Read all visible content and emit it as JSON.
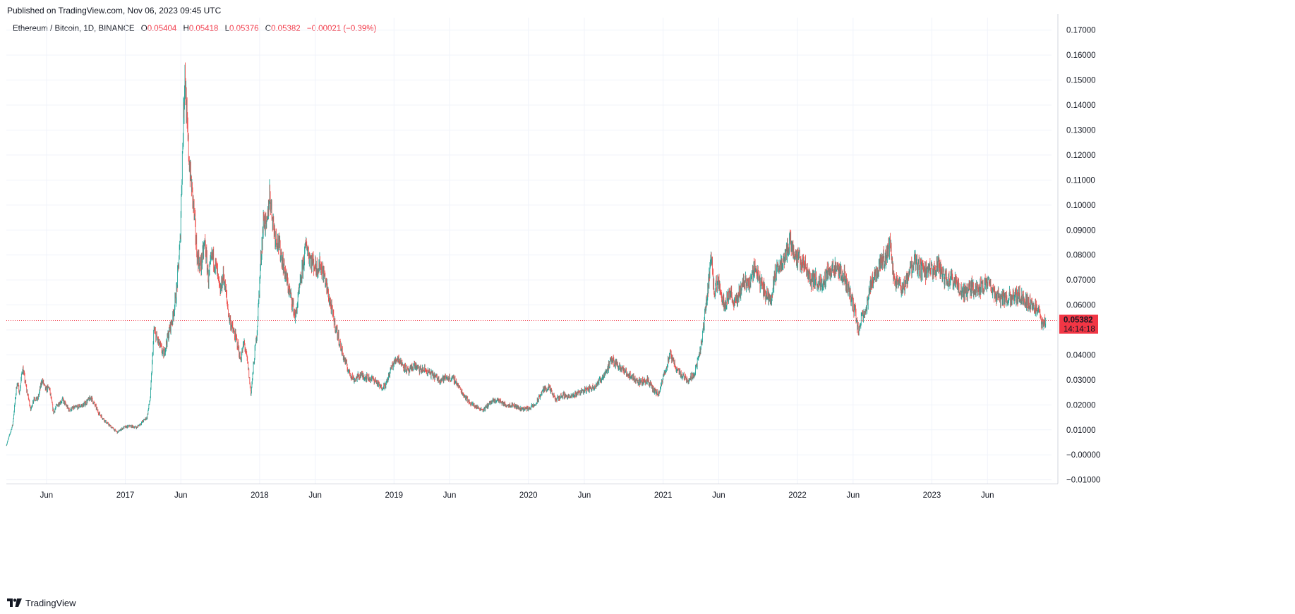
{
  "published": "Published on TradingView.com, Nov 06, 2023 09:45 UTC",
  "legend": {
    "symbol": "Ethereum / Bitcoin, 1D, BINANCE",
    "open_label": "O",
    "open": "0.05404",
    "high_label": "H",
    "high": "0.05418",
    "low_label": "L",
    "low": "0.05376",
    "close_label": "C",
    "close": "0.05382",
    "change": "−0.00021 (−0.39%)"
  },
  "footer": {
    "brand": "TradingView",
    "logo_icon": "tradingview-logo-icon"
  },
  "colors": {
    "up": "#26a69a",
    "down": "#ef5350",
    "grid": "#f0f3fa",
    "price_line": "#f23645",
    "badge": "#f23645"
  },
  "chart_data": {
    "type": "candlestick",
    "ylim": [
      -0.0115,
      0.175
    ],
    "xlim": [
      "2016-02-13",
      "2023-11-22"
    ],
    "grid": true,
    "y_ticks": [
      "0.17000",
      "0.16000",
      "0.15000",
      "0.14000",
      "0.13000",
      "0.12000",
      "0.11000",
      "0.10000",
      "0.09000",
      "0.08000",
      "0.07000",
      "0.06000",
      "0.05000",
      "0.04000",
      "0.03000",
      "0.02000",
      "0.01000",
      "−0.00000",
      "−0.01000"
    ],
    "y_tick_values": [
      0.17,
      0.16,
      0.15,
      0.14,
      0.13,
      0.12,
      0.11,
      0.1,
      0.09,
      0.08,
      0.07,
      0.06,
      0.05,
      0.04,
      0.03,
      0.02,
      0.01,
      0.0,
      -0.01
    ],
    "x_ticks": [
      {
        "date": "2016-06-01",
        "label": "Jun"
      },
      {
        "date": "2017-01-01",
        "label": "2017"
      },
      {
        "date": "2017-06-01",
        "label": "Jun"
      },
      {
        "date": "2018-01-01",
        "label": "2018"
      },
      {
        "date": "2018-06-01",
        "label": "Jun"
      },
      {
        "date": "2019-01-01",
        "label": "2019"
      },
      {
        "date": "2019-06-01",
        "label": "Jun"
      },
      {
        "date": "2020-01-01",
        "label": "2020"
      },
      {
        "date": "2020-06-01",
        "label": "Jun"
      },
      {
        "date": "2021-01-01",
        "label": "2021"
      },
      {
        "date": "2021-06-01",
        "label": "Jun"
      },
      {
        "date": "2022-01-01",
        "label": "2022"
      },
      {
        "date": "2022-06-01",
        "label": "Jun"
      },
      {
        "date": "2023-01-01",
        "label": "2023"
      },
      {
        "date": "2023-06-01",
        "label": "Jun"
      }
    ],
    "last_price": 0.05382,
    "last_price_label": "0.05382",
    "countdown_label": "14:14:18",
    "series": [
      {
        "kind": "close_path",
        "points": [
          [
            "2016-02-13",
            0.0038
          ],
          [
            "2016-03-01",
            0.012
          ],
          [
            "2016-03-13",
            0.029
          ],
          [
            "2016-03-20",
            0.025
          ],
          [
            "2016-03-28",
            0.035
          ],
          [
            "2016-04-08",
            0.026
          ],
          [
            "2016-04-20",
            0.018
          ],
          [
            "2016-04-28",
            0.023
          ],
          [
            "2016-05-08",
            0.022
          ],
          [
            "2016-05-20",
            0.03
          ],
          [
            "2016-05-30",
            0.026
          ],
          [
            "2016-06-08",
            0.027
          ],
          [
            "2016-06-20",
            0.017
          ],
          [
            "2016-06-30",
            0.02
          ],
          [
            "2016-07-15",
            0.022
          ],
          [
            "2016-08-01",
            0.018
          ],
          [
            "2016-08-20",
            0.019
          ],
          [
            "2016-09-10",
            0.02
          ],
          [
            "2016-09-30",
            0.023
          ],
          [
            "2016-10-20",
            0.017
          ],
          [
            "2016-11-10",
            0.013
          ],
          [
            "2016-11-25",
            0.011
          ],
          [
            "2016-12-10",
            0.009
          ],
          [
            "2016-12-28",
            0.011
          ],
          [
            "2017-01-15",
            0.0115
          ],
          [
            "2017-02-01",
            0.011
          ],
          [
            "2017-02-15",
            0.013
          ],
          [
            "2017-03-01",
            0.015
          ],
          [
            "2017-03-10",
            0.023
          ],
          [
            "2017-03-20",
            0.05
          ],
          [
            "2017-04-01",
            0.045
          ],
          [
            "2017-04-15",
            0.04
          ],
          [
            "2017-05-01",
            0.05
          ],
          [
            "2017-05-10",
            0.055
          ],
          [
            "2017-05-20",
            0.065
          ],
          [
            "2017-05-30",
            0.085
          ],
          [
            "2017-06-05",
            0.12
          ],
          [
            "2017-06-12",
            0.155
          ],
          [
            "2017-06-18",
            0.13
          ],
          [
            "2017-06-25",
            0.115
          ],
          [
            "2017-07-05",
            0.1
          ],
          [
            "2017-07-15",
            0.08
          ],
          [
            "2017-07-25",
            0.075
          ],
          [
            "2017-08-05",
            0.085
          ],
          [
            "2017-08-15",
            0.07
          ],
          [
            "2017-08-25",
            0.08
          ],
          [
            "2017-09-05",
            0.075
          ],
          [
            "2017-09-15",
            0.065
          ],
          [
            "2017-09-25",
            0.072
          ],
          [
            "2017-10-10",
            0.055
          ],
          [
            "2017-10-20",
            0.05
          ],
          [
            "2017-11-01",
            0.045
          ],
          [
            "2017-11-10",
            0.038
          ],
          [
            "2017-11-20",
            0.045
          ],
          [
            "2017-12-01",
            0.035
          ],
          [
            "2017-12-08",
            0.024
          ],
          [
            "2017-12-15",
            0.035
          ],
          [
            "2017-12-25",
            0.05
          ],
          [
            "2018-01-05",
            0.08
          ],
          [
            "2018-01-12",
            0.095
          ],
          [
            "2018-01-20",
            0.09
          ],
          [
            "2018-01-28",
            0.105
          ],
          [
            "2018-02-05",
            0.095
          ],
          [
            "2018-02-12",
            0.088
          ],
          [
            "2018-02-20",
            0.085
          ],
          [
            "2018-03-01",
            0.08
          ],
          [
            "2018-03-15",
            0.07
          ],
          [
            "2018-04-01",
            0.06
          ],
          [
            "2018-04-08",
            0.055
          ],
          [
            "2018-04-18",
            0.065
          ],
          [
            "2018-04-28",
            0.075
          ],
          [
            "2018-05-08",
            0.085
          ],
          [
            "2018-05-15",
            0.08
          ],
          [
            "2018-05-25",
            0.077
          ],
          [
            "2018-06-05",
            0.075
          ],
          [
            "2018-06-15",
            0.076
          ],
          [
            "2018-06-25",
            0.072
          ],
          [
            "2018-07-05",
            0.065
          ],
          [
            "2018-07-20",
            0.055
          ],
          [
            "2018-08-01",
            0.048
          ],
          [
            "2018-08-15",
            0.04
          ],
          [
            "2018-09-01",
            0.033
          ],
          [
            "2018-09-15",
            0.03
          ],
          [
            "2018-10-01",
            0.032
          ],
          [
            "2018-10-20",
            0.031
          ],
          [
            "2018-11-10",
            0.03
          ],
          [
            "2018-11-25",
            0.027
          ],
          [
            "2018-12-10",
            0.028
          ],
          [
            "2018-12-25",
            0.035
          ],
          [
            "2019-01-10",
            0.039
          ],
          [
            "2019-01-25",
            0.036
          ],
          [
            "2019-02-10",
            0.033
          ],
          [
            "2019-02-25",
            0.036
          ],
          [
            "2019-03-10",
            0.034
          ],
          [
            "2019-03-25",
            0.034
          ],
          [
            "2019-04-15",
            0.032
          ],
          [
            "2019-05-05",
            0.03
          ],
          [
            "2019-05-25",
            0.031
          ],
          [
            "2019-06-15",
            0.03
          ],
          [
            "2019-07-05",
            0.025
          ],
          [
            "2019-07-25",
            0.021
          ],
          [
            "2019-08-15",
            0.019
          ],
          [
            "2019-09-01",
            0.018
          ],
          [
            "2019-09-20",
            0.021
          ],
          [
            "2019-10-10",
            0.022
          ],
          [
            "2019-10-30",
            0.02
          ],
          [
            "2019-11-20",
            0.02
          ],
          [
            "2019-12-10",
            0.0185
          ],
          [
            "2019-12-31",
            0.0185
          ],
          [
            "2020-01-20",
            0.02
          ],
          [
            "2020-02-10",
            0.026
          ],
          [
            "2020-02-25",
            0.027
          ],
          [
            "2020-03-15",
            0.022
          ],
          [
            "2020-04-05",
            0.024
          ],
          [
            "2020-04-25",
            0.023
          ],
          [
            "2020-05-15",
            0.025
          ],
          [
            "2020-06-05",
            0.026
          ],
          [
            "2020-06-25",
            0.027
          ],
          [
            "2020-07-15",
            0.03
          ],
          [
            "2020-08-01",
            0.034
          ],
          [
            "2020-08-15",
            0.038
          ],
          [
            "2020-09-01",
            0.036
          ],
          [
            "2020-09-20",
            0.033
          ],
          [
            "2020-10-10",
            0.031
          ],
          [
            "2020-10-30",
            0.029
          ],
          [
            "2020-11-20",
            0.03
          ],
          [
            "2020-12-05",
            0.026
          ],
          [
            "2020-12-20",
            0.024
          ],
          [
            "2021-01-05",
            0.033
          ],
          [
            "2021-01-20",
            0.04
          ],
          [
            "2021-02-05",
            0.035
          ],
          [
            "2021-02-20",
            0.032
          ],
          [
            "2021-03-10",
            0.03
          ],
          [
            "2021-03-25",
            0.032
          ],
          [
            "2021-04-10",
            0.04
          ],
          [
            "2021-04-20",
            0.05
          ],
          [
            "2021-05-05",
            0.07
          ],
          [
            "2021-05-12",
            0.08
          ],
          [
            "2021-05-20",
            0.065
          ],
          [
            "2021-06-01",
            0.07
          ],
          [
            "2021-06-15",
            0.06
          ],
          [
            "2021-07-01",
            0.065
          ],
          [
            "2021-07-15",
            0.06
          ],
          [
            "2021-07-30",
            0.066
          ],
          [
            "2021-08-10",
            0.07
          ],
          [
            "2021-08-25",
            0.068
          ],
          [
            "2021-09-05",
            0.076
          ],
          [
            "2021-09-20",
            0.07
          ],
          [
            "2021-10-05",
            0.065
          ],
          [
            "2021-10-20",
            0.062
          ],
          [
            "2021-11-01",
            0.072
          ],
          [
            "2021-11-15",
            0.076
          ],
          [
            "2021-11-30",
            0.08
          ],
          [
            "2021-12-10",
            0.086
          ],
          [
            "2021-12-20",
            0.082
          ],
          [
            "2022-01-05",
            0.078
          ],
          [
            "2022-01-20",
            0.076
          ],
          [
            "2022-02-05",
            0.07
          ],
          [
            "2022-02-20",
            0.07
          ],
          [
            "2022-03-05",
            0.068
          ],
          [
            "2022-03-20",
            0.072
          ],
          [
            "2022-04-05",
            0.075
          ],
          [
            "2022-04-20",
            0.073
          ],
          [
            "2022-05-05",
            0.072
          ],
          [
            "2022-05-20",
            0.066
          ],
          [
            "2022-06-05",
            0.058
          ],
          [
            "2022-06-15",
            0.05
          ],
          [
            "2022-06-25",
            0.055
          ],
          [
            "2022-07-05",
            0.056
          ],
          [
            "2022-07-20",
            0.07
          ],
          [
            "2022-08-01",
            0.072
          ],
          [
            "2022-08-15",
            0.078
          ],
          [
            "2022-09-01",
            0.08
          ],
          [
            "2022-09-10",
            0.084
          ],
          [
            "2022-09-20",
            0.07
          ],
          [
            "2022-10-05",
            0.068
          ],
          [
            "2022-10-20",
            0.067
          ],
          [
            "2022-11-05",
            0.075
          ],
          [
            "2022-11-15",
            0.077
          ],
          [
            "2022-12-01",
            0.074
          ],
          [
            "2022-12-20",
            0.073
          ],
          [
            "2023-01-05",
            0.074
          ],
          [
            "2023-01-20",
            0.076
          ],
          [
            "2023-02-05",
            0.07
          ],
          [
            "2023-02-20",
            0.071
          ],
          [
            "2023-03-05",
            0.07
          ],
          [
            "2023-03-20",
            0.065
          ],
          [
            "2023-04-05",
            0.065
          ],
          [
            "2023-04-20",
            0.067
          ],
          [
            "2023-05-05",
            0.066
          ],
          [
            "2023-05-20",
            0.068
          ],
          [
            "2023-06-05",
            0.069
          ],
          [
            "2023-06-20",
            0.064
          ],
          [
            "2023-07-05",
            0.063
          ],
          [
            "2023-07-20",
            0.063
          ],
          [
            "2023-08-05",
            0.063
          ],
          [
            "2023-08-20",
            0.064
          ],
          [
            "2023-09-05",
            0.063
          ],
          [
            "2023-09-20",
            0.061
          ],
          [
            "2023-10-05",
            0.06
          ],
          [
            "2023-10-20",
            0.056
          ],
          [
            "2023-10-30",
            0.052
          ],
          [
            "2023-11-06",
            0.0538
          ]
        ]
      }
    ]
  }
}
